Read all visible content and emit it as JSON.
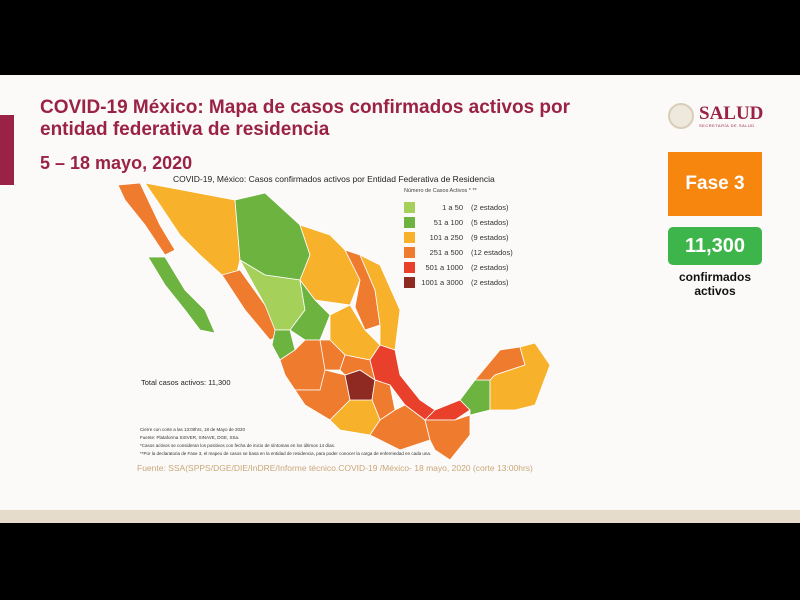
{
  "header": {
    "title": "COVID-19 México: Mapa de casos confirmados activos por entidad federativa de residencia",
    "dates": "5 – 18 mayo, 2020"
  },
  "logo": {
    "name": "SALUD",
    "subtitle": "SECRETARÍA DE SALUD"
  },
  "phase": {
    "label": "Fase 3",
    "color": "#f7860f"
  },
  "active": {
    "count": "11,300",
    "label": "confirmados activos",
    "color": "#3db54a"
  },
  "map": {
    "title": "COVID-19, México: Casos confirmados activos por Entidad Federativa de Residencia",
    "legend_title": "Número de Casos Activos * **",
    "legend": [
      {
        "range": "1 a 50",
        "count": "(2 estados)",
        "color": "#a5d15a"
      },
      {
        "range": "51 a 100",
        "count": "(5 estados)",
        "color": "#6db33f"
      },
      {
        "range": "101 a 250",
        "count": "(9 estados)",
        "color": "#f7b12a"
      },
      {
        "range": "251 a 500",
        "count": "(12 estados)",
        "color": "#ef7b2e"
      },
      {
        "range": "501 a 1000",
        "count": "(2 estados)",
        "color": "#e8402a"
      },
      {
        "range": "1001 a 3000",
        "count": "(2 estados)",
        "color": "#8e2a22"
      }
    ],
    "total": "Total casos activos: 11,300",
    "notes": [
      "Cierre con corte a las 13:00hrs, 18 de Mayo de 2020",
      "Fuente: Plataforma SISVER, SINAVE, DGE, SSa.",
      "*Casos activos se consideran los positivos con fecha de inicio de síntomas en los últimos 14 días.",
      "**Por la declaratoria de Fase 3, el mapeo de casos se basa en la entidad de residencia, para poder conocer la carga de enfermedad en cada una."
    ]
  },
  "source": "Fuente: SSA(SPPS/DGE/DIE/InDRE/Informe técnico.COVID-19 /México- 18 mayo, 2020 (corte 13:00hrs)"
}
